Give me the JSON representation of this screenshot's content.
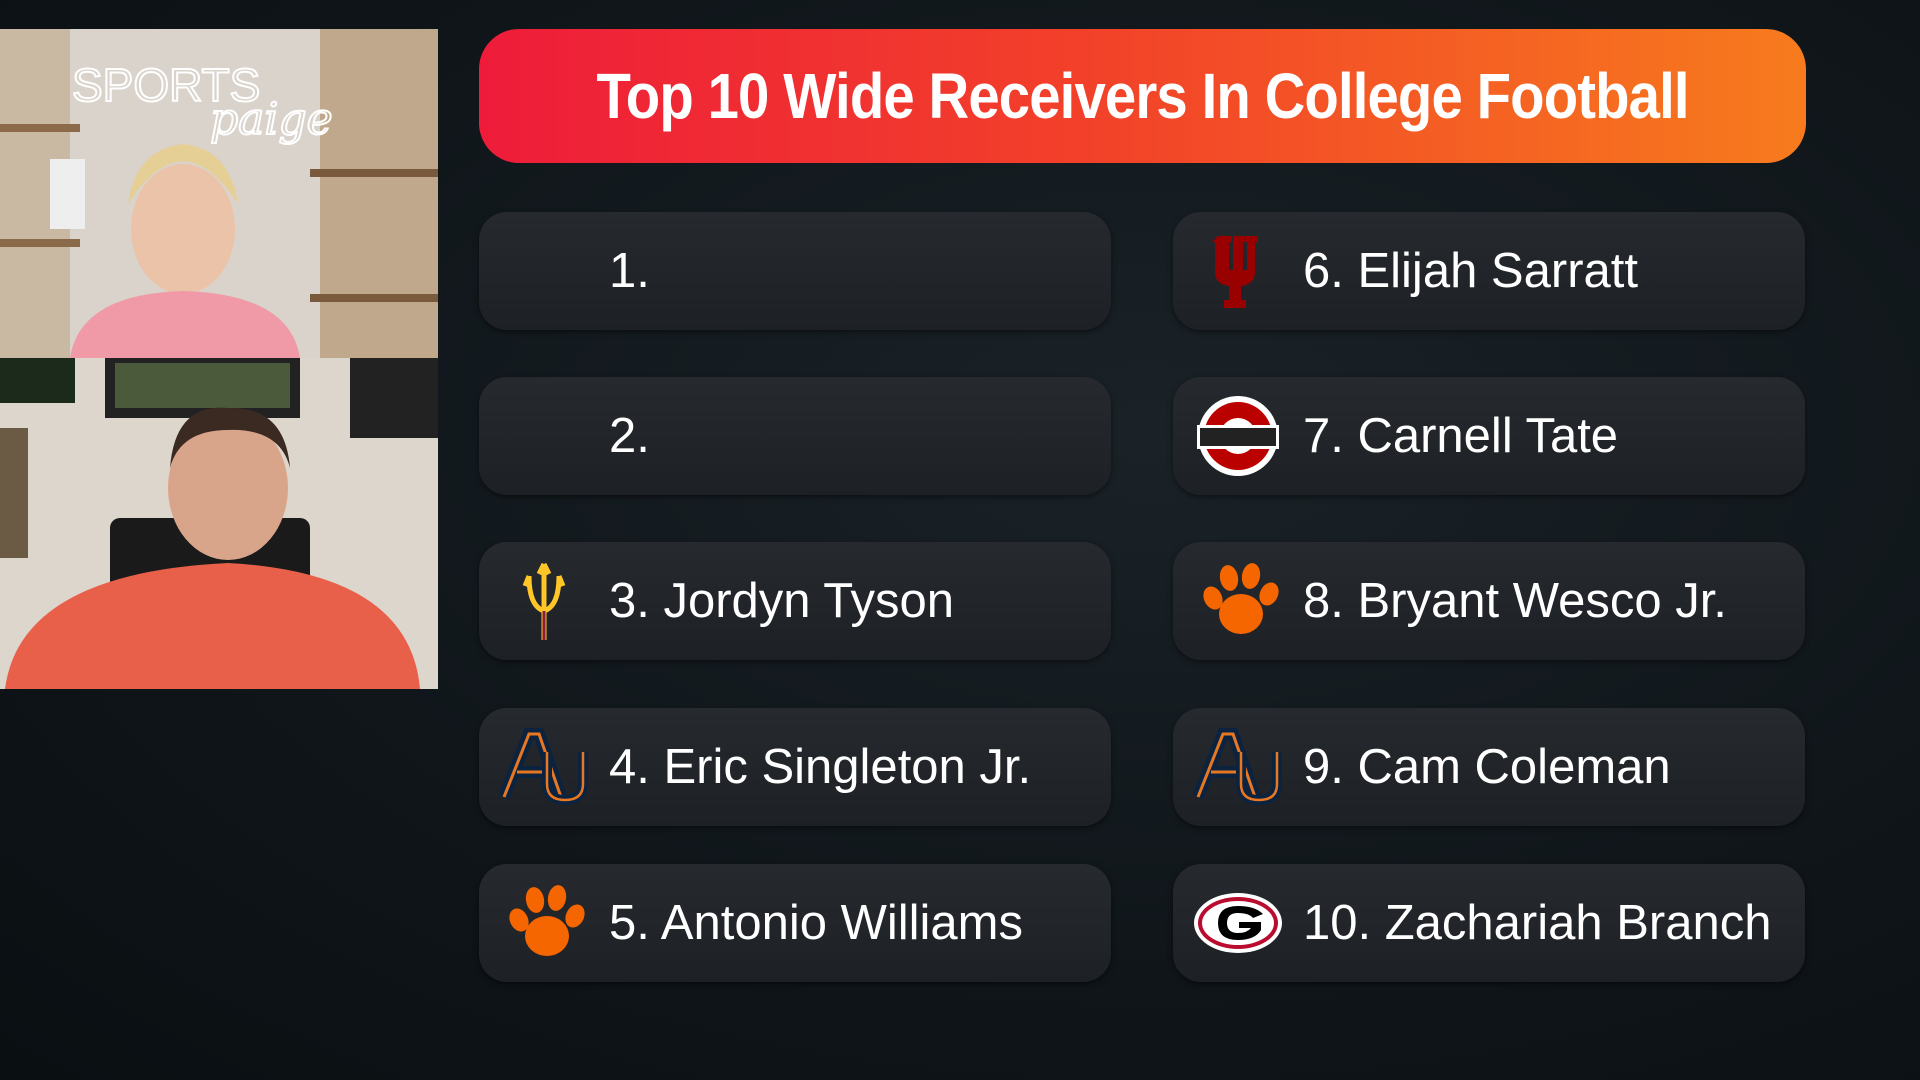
{
  "title": "Top 10 Wide Receivers In College Football",
  "webcam": {
    "sign_top": "SPORTS",
    "sign_script": "paige"
  },
  "items": [
    {
      "label": "1."
    },
    {
      "label": "2."
    },
    {
      "label": "3. Jordyn Tyson"
    },
    {
      "label": "4. Eric Singleton Jr."
    },
    {
      "label": "5. Antonio Williams"
    },
    {
      "label": "6. Elijah Sarratt"
    },
    {
      "label": "7. Carnell Tate"
    },
    {
      "label": "8. Bryant Wesco Jr."
    },
    {
      "label": "9. Cam Coleman"
    },
    {
      "label": "10. Zachariah Branch"
    }
  ]
}
